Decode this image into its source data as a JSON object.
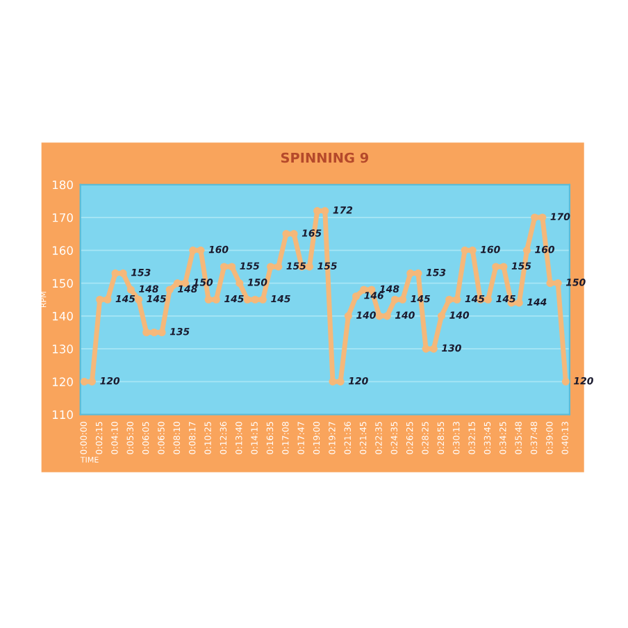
{
  "chart_data": {
    "type": "line",
    "title": "SPINNING 9",
    "xlabel": "TIME",
    "ylabel": "RPM",
    "categories": [
      "0:00:00",
      null,
      "0:02:15",
      null,
      "0:04:10",
      null,
      "0:05:30",
      null,
      "0:06:05",
      null,
      "0:06:50",
      null,
      "0:08:10",
      null,
      "0:08:17",
      null,
      "0:10:25",
      null,
      "0:12:36",
      null,
      "0:13:40",
      null,
      "0:14:15",
      null,
      "0:16:35",
      null,
      "0:17:08",
      null,
      "0:17:47",
      null,
      "0:19:00",
      null,
      "0:19:27",
      null,
      "0:21:36",
      null,
      "0:21:45",
      null,
      "0:22:35",
      null,
      "0:24:35",
      null,
      "0:26:25",
      null,
      "0:28:25",
      null,
      "0:28:55",
      null,
      "0:30:13",
      null,
      "0:32:15",
      null,
      "0:33:45",
      null,
      "0:34:25",
      null,
      "0:35:48",
      null,
      "0:37:48",
      null,
      "0:39:00",
      null,
      "0:40:13"
    ],
    "series": [
      {
        "color": "#f5b87a",
        "values": [
          120,
          120,
          145,
          145,
          153,
          153,
          148,
          145,
          135,
          135,
          135,
          148,
          150,
          150,
          160,
          160,
          145,
          145,
          155,
          155,
          150,
          145,
          145,
          145,
          155,
          155,
          165,
          165,
          155,
          155,
          172,
          172,
          120,
          120,
          140,
          146,
          148,
          148,
          140,
          140,
          145,
          145,
          153,
          153,
          130,
          130,
          140,
          145,
          145,
          160,
          160,
          145,
          145,
          155,
          155,
          144,
          144,
          160,
          170,
          170,
          150,
          150,
          120
        ],
        "value_labels": [
          null,
          "120",
          null,
          "145",
          null,
          "153",
          "148",
          "145",
          null,
          null,
          "135",
          "148",
          null,
          "150",
          null,
          "160",
          null,
          "145",
          null,
          "155",
          "150",
          null,
          null,
          "145",
          null,
          "155",
          null,
          "165",
          null,
          "155",
          null,
          "172",
          null,
          "120",
          "140",
          "146",
          null,
          "148",
          null,
          "140",
          null,
          "145",
          null,
          "153",
          null,
          "130",
          "140",
          null,
          "145",
          null,
          "160",
          null,
          "145",
          null,
          "155",
          null,
          "144",
          "160",
          null,
          "170",
          null,
          "150",
          "120"
        ]
      }
    ],
    "ylim": [
      110,
      180
    ],
    "yticks": [
      110,
      120,
      130,
      140,
      150,
      160,
      170,
      180
    ],
    "grid": "y",
    "marker": "circle",
    "line_style": "solid",
    "legend": false
  }
}
